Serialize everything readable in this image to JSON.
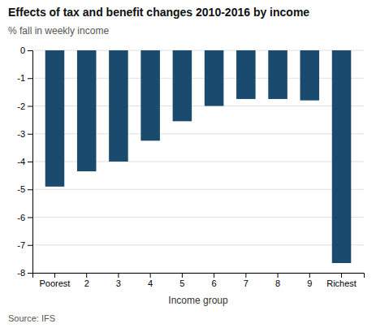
{
  "chart_data": {
    "type": "bar",
    "title": "Effects of tax and benefit changes 2010-2016 by income",
    "subtitle": "% fall in weekly income",
    "xlabel": "Income group",
    "source": "Source: IFS",
    "categories": [
      "Poorest",
      "2",
      "3",
      "4",
      "5",
      "6",
      "7",
      "8",
      "9",
      "Richest"
    ],
    "values": [
      -4.9,
      -4.35,
      -4.0,
      -3.25,
      -2.55,
      -2.0,
      -1.75,
      -1.75,
      -1.8,
      -7.65
    ],
    "color": "#1a4a6e",
    "ylim": [
      -8,
      0
    ],
    "yticks": [
      0,
      -1,
      -2,
      -3,
      -4,
      -5,
      -6,
      -7,
      -8
    ],
    "grid": true
  }
}
